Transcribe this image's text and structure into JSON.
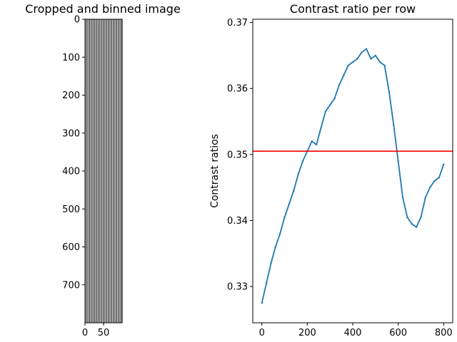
{
  "chart_data": [
    {
      "type": "heatmap",
      "title": "Cropped and binned image",
      "xlabel": "",
      "ylabel": "",
      "xlim": [
        0,
        100
      ],
      "ylim": [
        800,
        0
      ],
      "x_ticks": [
        "0",
        "50"
      ],
      "y_ticks": [
        "0",
        "100",
        "200",
        "300",
        "400",
        "500",
        "600",
        "700"
      ],
      "colormap": "gray",
      "content": "vertical stripe pattern"
    },
    {
      "type": "line",
      "title": "Contrast ratio per row",
      "xlabel": "",
      "ylabel": "Contrast ratios",
      "xlim": [
        -40,
        840
      ],
      "ylim": [
        0.3245,
        0.3705
      ],
      "x_ticks": [
        "0",
        "200",
        "400",
        "600",
        "800"
      ],
      "y_ticks": [
        "0.33",
        "0.34",
        "0.35",
        "0.36",
        "0.37"
      ],
      "grid": false,
      "series": [
        {
          "color": "#1f77b4",
          "x": [
            0,
            20,
            40,
            60,
            80,
            100,
            120,
            140,
            160,
            180,
            200,
            220,
            240,
            260,
            280,
            300,
            320,
            340,
            360,
            380,
            400,
            420,
            440,
            460,
            480,
            500,
            520,
            540,
            560,
            580,
            600,
            620,
            640,
            660,
            680,
            700,
            720,
            740,
            760,
            780,
            800
          ],
          "y": [
            0.3275,
            0.3305,
            0.3335,
            0.336,
            0.338,
            0.3405,
            0.3425,
            0.3445,
            0.347,
            0.349,
            0.3505,
            0.352,
            0.3515,
            0.354,
            0.3565,
            0.3575,
            0.3585,
            0.3605,
            0.362,
            0.3635,
            0.364,
            0.3645,
            0.3655,
            0.366,
            0.3645,
            0.365,
            0.364,
            0.3635,
            0.3595,
            0.3545,
            0.349,
            0.3435,
            0.3405,
            0.3395,
            0.339,
            0.3405,
            0.3435,
            0.345,
            0.346,
            0.3465,
            0.3485
          ]
        },
        {
          "color": "#ff0000",
          "type": "hline",
          "y": 0.3505
        }
      ]
    }
  ]
}
